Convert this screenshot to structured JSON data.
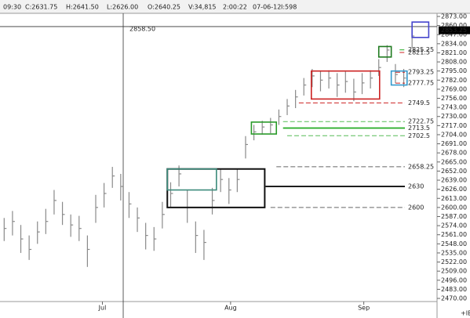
{
  "header": [
    "09:30",
    "C:2631.75",
    "H:2641.50",
    "L:2626.00",
    "O:2640.25",
    "V:34,815",
    "2:00:22",
    "07-06-12",
    "I:598"
  ],
  "footer_note": "+IB",
  "chart_data": {
    "type": "ohlc",
    "xlim": [
      -0.5,
      52
    ],
    "xticks": [
      {
        "value": 11.8,
        "label": "Jul"
      },
      {
        "value": 27.2,
        "label": "Aug"
      },
      {
        "value": 43.2,
        "label": "Sep"
      }
    ],
    "ylim": [
      2470,
      2873
    ],
    "yticks": [
      {
        "value": 2470,
        "label": "2470.00"
      },
      {
        "value": 2483,
        "label": "2483.00"
      },
      {
        "value": 2496,
        "label": "2496.00"
      },
      {
        "value": 2509,
        "label": "2509.00"
      },
      {
        "value": 2522,
        "label": "2522.00"
      },
      {
        "value": 2535,
        "label": "2535.00"
      },
      {
        "value": 2548,
        "label": "2548.00"
      },
      {
        "value": 2561,
        "label": "2561.00"
      },
      {
        "value": 2574,
        "label": "2574.00"
      },
      {
        "value": 2587,
        "label": "2587.00"
      },
      {
        "value": 2600,
        "label": "2600.00"
      },
      {
        "value": 2613,
        "label": "2613.00"
      },
      {
        "value": 2626,
        "label": "2626.00"
      },
      {
        "value": 2639,
        "label": "2639.00"
      },
      {
        "value": 2652,
        "label": "2652.00"
      },
      {
        "value": 2665,
        "label": "2665.00"
      },
      {
        "value": 2678,
        "label": "2678.00"
      },
      {
        "value": 2691,
        "label": "2691.00"
      },
      {
        "value": 2704,
        "label": "2704.00"
      },
      {
        "value": 2717,
        "label": "2717.00"
      },
      {
        "value": 2730,
        "label": "2730.00"
      },
      {
        "value": 2743,
        "label": "2743.00"
      },
      {
        "value": 2756,
        "label": "2756.00"
      },
      {
        "value": 2769,
        "label": "2769.00"
      },
      {
        "value": 2782,
        "label": "2782.00"
      },
      {
        "value": 2795,
        "label": "2795.00"
      },
      {
        "value": 2808,
        "label": "2808.00"
      },
      {
        "value": 2821,
        "label": "2821.00"
      },
      {
        "value": 2834,
        "label": "2834.00"
      },
      {
        "value": 2847,
        "label": "2847.00"
      },
      {
        "value": 2860,
        "label": "2860.00"
      },
      {
        "value": 2873,
        "label": "2873.00"
      }
    ],
    "color": "#8a8a8a",
    "high": [
      2585,
      2595,
      2575,
      2560,
      2580,
      2598,
      2625,
      2608,
      2590,
      2588,
      2560,
      2618,
      2635,
      2658,
      2648,
      2622,
      2600,
      2578,
      2572,
      2608,
      2636,
      2660,
      2625,
      2580,
      2568,
      2628,
      2655,
      2642,
      2655,
      2702,
      2718,
      2724,
      2728,
      2740,
      2755,
      2768,
      2785,
      2798,
      2795,
      2796,
      2792,
      2794,
      2784,
      2792,
      2796,
      2812,
      2832,
      2805,
      2798,
      2858
    ],
    "low": [
      2552,
      2560,
      2535,
      2525,
      2548,
      2562,
      2590,
      2575,
      2558,
      2552,
      2515,
      2578,
      2600,
      2628,
      2610,
      2585,
      2565,
      2540,
      2538,
      2570,
      2600,
      2630,
      2578,
      2535,
      2525,
      2590,
      2622,
      2605,
      2622,
      2670,
      2696,
      2704,
      2706,
      2718,
      2732,
      2742,
      2760,
      2772,
      2766,
      2770,
      2758,
      2764,
      2752,
      2762,
      2770,
      2788,
      2808,
      2778,
      2772,
      2828
    ],
    "close": [
      2570,
      2580,
      2555,
      2540,
      2565,
      2580,
      2610,
      2590,
      2575,
      2570,
      2540,
      2600,
      2620,
      2645,
      2630,
      2605,
      2585,
      2560,
      2555,
      2590,
      2620,
      2648,
      2600,
      2560,
      2550,
      2610,
      2640,
      2625,
      2640,
      2690,
      2708,
      2715,
      2718,
      2730,
      2745,
      2758,
      2775,
      2788,
      2782,
      2785,
      2775,
      2780,
      2765,
      2778,
      2785,
      2800,
      2825,
      2790,
      2785,
      2845
    ],
    "boxes": [
      {
        "start": 19.6,
        "end": 31.3,
        "low": 2600,
        "high": 2655,
        "color": "#111111"
      },
      {
        "start": 19.6,
        "end": 25.5,
        "low": 2625,
        "high": 2655,
        "color": "#3a8a7a"
      },
      {
        "start": 29.7,
        "end": 32.7,
        "low": 2705,
        "high": 2722,
        "color": "#2a9a2a"
      },
      {
        "start": 36.9,
        "end": 45.1,
        "low": 2755,
        "high": 2795,
        "color": "#cc2222"
      },
      {
        "start": 45,
        "end": 46.5,
        "low": 2815,
        "high": 2830,
        "color": "#1f7a1f"
      },
      {
        "start": 46.5,
        "end": 48.4,
        "low": 2775,
        "high": 2795,
        "color": "#3399cc"
      },
      {
        "start": 49,
        "end": 51,
        "low": 2843,
        "high": 2865,
        "color": "#4444cc"
      }
    ],
    "levels": [
      {
        "value": 2658.25,
        "label": "2658.25",
        "color": "#666666",
        "dash": true,
        "start": 32.7
      },
      {
        "value": 2630,
        "label": "2630",
        "color": "#111111",
        "dash": false,
        "start": 31.4
      },
      {
        "value": 2600,
        "label": "2600",
        "color": "#666666",
        "dash": true,
        "start": 32
      },
      {
        "value": 2722.75,
        "label": "2722.75",
        "color": "#55bb55",
        "dash": true,
        "start": 33.5
      },
      {
        "value": 2713.5,
        "label": "2713.5",
        "color": "#22aa22",
        "dash": false,
        "start": 33.5
      },
      {
        "value": 2702.5,
        "label": "2702.5",
        "color": "#55bb55",
        "dash": true,
        "start": 34
      },
      {
        "value": 2749.5,
        "label": "2749.5",
        "color": "#cc2222",
        "dash": true,
        "start": 35.4
      },
      {
        "value": 2777.75,
        "label": "2777.75",
        "color": "#cc2222",
        "dash": true,
        "start": 47
      },
      {
        "value": 2793.25,
        "label": "2793.25",
        "color": "#cc2222",
        "dash": true,
        "start": 47
      },
      {
        "value": 2821.5,
        "label": "2821.5",
        "color": "#cc2222",
        "dash": true,
        "start": 47.5
      },
      {
        "value": 2825.25,
        "label": "2825.25",
        "color": "#22aa22",
        "dash": true,
        "start": 47.5
      }
    ],
    "crosshair": {
      "x": 14.3,
      "value": 2858.5,
      "label": "2858.50"
    },
    "last_price": {
      "value": 2853.25,
      "label": "2853.25"
    }
  }
}
